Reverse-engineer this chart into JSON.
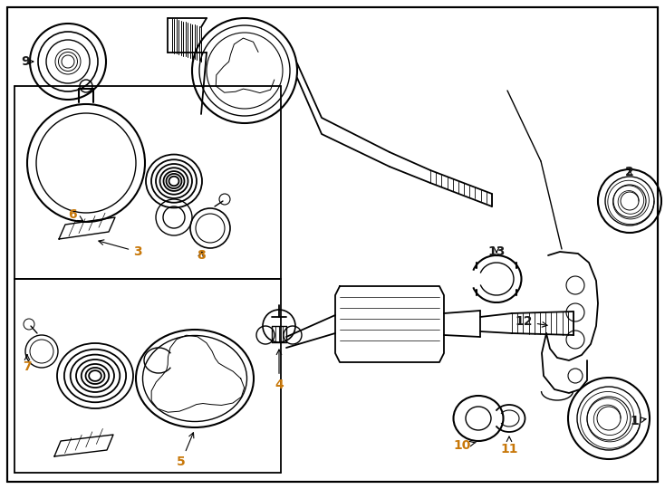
{
  "bg_color": "#ffffff",
  "line_color": "#000000",
  "label_color": "#1a1a1a",
  "number_color_orange": "#c8780a",
  "fig_width": 7.34,
  "fig_height": 5.4,
  "dpi": 100
}
